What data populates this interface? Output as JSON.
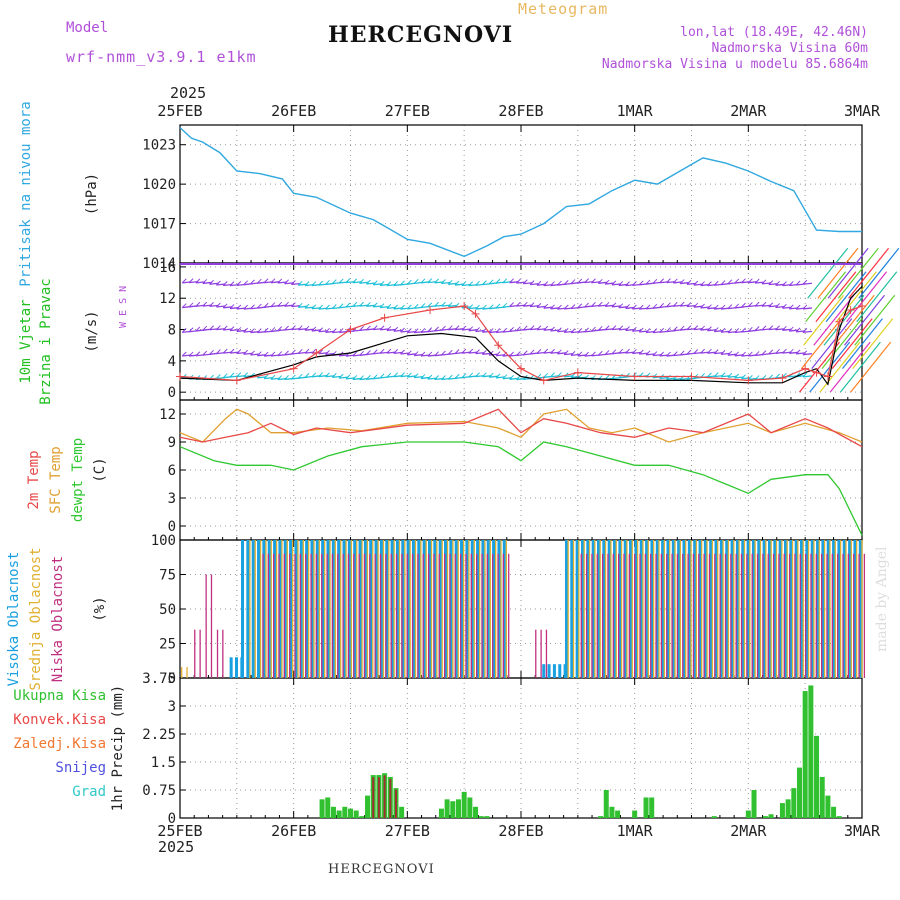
{
  "header": {
    "model_label": "Model",
    "model_name": "wrf-nmm_v3.9.1 e1km",
    "meteogram": "Meteogram",
    "station": "HERCEGNOVI",
    "lonlat": "lon,lat (18.49E, 42.46N)",
    "altitude": "Nadmorska Visina 60m",
    "model_altitude": "Nadmorska Visina u modelu 85.6864m",
    "year_top": "2025",
    "year_bottom": "2025",
    "footer_station": "HERCEGNOVI",
    "watermark": "made by Angel"
  },
  "colors": {
    "pressure": "#30a8e0",
    "temp2m": "#e84848",
    "sfc": "#e0a030",
    "dew": "#30c830",
    "high_cloud": "#18a0e0",
    "mid_cloud": "#e0b030",
    "low_cloud": "#c03080",
    "precip": "#30c030",
    "conv": "#e84848",
    "wind_speed": "#000000",
    "gust": "#e84848",
    "barb_violet": "#9040e0"
  },
  "chart_data": [
    {
      "type": "line",
      "id": "pressure",
      "ylabel": "Pritisak na nivou mora",
      "unit": "(hPa)",
      "ylim": [
        1014,
        1024.5
      ],
      "yticks": [
        "1014",
        "1017",
        "1020",
        "1023"
      ],
      "x_days": [
        "25FEB",
        "26FEB",
        "27FEB",
        "28FEB",
        "1MAR",
        "2MAR",
        "3MAR"
      ],
      "x": [
        0,
        0.1,
        0.2,
        0.35,
        0.5,
        0.7,
        0.9,
        1.0,
        1.2,
        1.5,
        1.7,
        2.0,
        2.2,
        2.5,
        2.7,
        2.85,
        3.0,
        3.2,
        3.4,
        3.6,
        3.8,
        4.0,
        4.2,
        4.4,
        4.6,
        4.8,
        5.0,
        5.2,
        5.4,
        5.6,
        5.8,
        6.0
      ],
      "y": [
        1024.3,
        1023.5,
        1023.2,
        1022.4,
        1021.0,
        1020.8,
        1020.4,
        1019.3,
        1019.0,
        1017.8,
        1017.3,
        1015.8,
        1015.5,
        1014.5,
        1015.3,
        1016.0,
        1016.2,
        1017.0,
        1018.3,
        1018.5,
        1019.5,
        1020.3,
        1020.0,
        1021.0,
        1022.0,
        1021.6,
        1021.0,
        1020.2,
        1019.5,
        1016.5,
        1016.4,
        1016.4
      ]
    },
    {
      "type": "line",
      "id": "wind",
      "ylabel": "10m Vjetar",
      "ylabel2": "Brzina i Pravac",
      "unit": "(m/s)",
      "ylim": [
        -1,
        16.5
      ],
      "yticks": [
        "0",
        "4",
        "8",
        "12",
        "16"
      ],
      "compass": "W  E   S  N",
      "series": [
        {
          "x": [
            0,
            0.5,
            1.0,
            1.2,
            1.5,
            2.0,
            2.3,
            2.6,
            2.8,
            3.0,
            3.2,
            3.5,
            4.0,
            4.5,
            5.0,
            5.3,
            5.5,
            5.6,
            5.7,
            5.8,
            5.9,
            6.0
          ],
          "y": [
            1.8,
            1.5,
            3.5,
            4.5,
            5.0,
            7.2,
            7.5,
            7.0,
            4.0,
            2.0,
            1.5,
            1.8,
            1.5,
            1.5,
            1.2,
            1.2,
            2.5,
            3.0,
            1.0,
            8.0,
            12.0,
            13.5
          ]
        },
        {
          "x": [
            0,
            0.5,
            1.0,
            1.2,
            1.5,
            1.8,
            2.2,
            2.5,
            2.6,
            2.8,
            3.0,
            3.2,
            3.5,
            4.0,
            4.5,
            5.0,
            5.3,
            5.5,
            5.6,
            5.7,
            5.8,
            5.9,
            6.0
          ],
          "y": [
            2.0,
            1.5,
            3.0,
            5.0,
            8.0,
            9.5,
            10.5,
            11.0,
            10.0,
            6.0,
            3.0,
            1.5,
            2.5,
            2.0,
            2.0,
            1.5,
            1.8,
            3.0,
            2.5,
            2.0,
            9.0,
            10.5,
            11.0
          ]
        }
      ]
    },
    {
      "type": "line",
      "id": "temperature",
      "ylabel": "2m Temp",
      "ylabel2": "SFC Temp",
      "ylabel3": "dewpt Temp",
      "unit": "(C)",
      "ylim": [
        -1.5,
        13.5
      ],
      "yticks": [
        "0",
        "3",
        "6",
        "9",
        "12"
      ],
      "series": [
        {
          "name": "2m Temp",
          "x": [
            0,
            0.2,
            0.4,
            0.6,
            0.8,
            1.0,
            1.2,
            1.5,
            2.0,
            2.5,
            2.8,
            3.0,
            3.2,
            3.4,
            3.7,
            4.0,
            4.3,
            4.6,
            5.0,
            5.2,
            5.5,
            5.7,
            6.0
          ],
          "y": [
            9.5,
            9.0,
            9.5,
            10.0,
            11.0,
            9.8,
            10.5,
            10.0,
            10.8,
            11.0,
            12.5,
            10.0,
            11.5,
            11.0,
            10.0,
            9.5,
            10.5,
            10.0,
            12.0,
            10.0,
            11.5,
            10.5,
            8.5
          ]
        },
        {
          "name": "SFC Temp",
          "x": [
            0,
            0.2,
            0.4,
            0.5,
            0.6,
            0.8,
            1.0,
            1.3,
            1.6,
            2.0,
            2.5,
            2.8,
            3.0,
            3.2,
            3.4,
            3.6,
            3.8,
            4.0,
            4.3,
            4.6,
            5.0,
            5.2,
            5.5,
            5.8,
            6.0
          ],
          "y": [
            10.0,
            9.0,
            11.5,
            12.5,
            12.0,
            10.0,
            10.0,
            10.5,
            10.2,
            11.0,
            11.2,
            10.5,
            9.5,
            12.0,
            12.5,
            10.5,
            10.0,
            10.5,
            9.0,
            10.0,
            11.0,
            10.0,
            11.0,
            10.0,
            9.0
          ]
        },
        {
          "name": "dewpt Temp",
          "x": [
            0,
            0.3,
            0.5,
            0.8,
            1.0,
            1.3,
            1.6,
            2.0,
            2.5,
            2.8,
            3.0,
            3.2,
            3.4,
            3.7,
            4.0,
            4.3,
            4.6,
            4.8,
            5.0,
            5.2,
            5.5,
            5.7,
            5.8,
            6.0
          ],
          "y": [
            8.5,
            7.0,
            6.5,
            6.5,
            6.0,
            7.5,
            8.5,
            9.0,
            9.0,
            8.5,
            7.0,
            9.0,
            8.5,
            7.5,
            6.5,
            6.5,
            5.5,
            4.5,
            3.5,
            5.0,
            5.5,
            5.5,
            4.0,
            -1.0
          ]
        }
      ]
    },
    {
      "type": "bar",
      "id": "clouds",
      "ylabel": "Visoka Oblacnost",
      "ylabel2": "Srednja Oblacnost",
      "ylabel3": "Niska Oblacnost",
      "unit": "(%)",
      "ylim": [
        0,
        100
      ],
      "yticks": [
        "0",
        "25",
        "50",
        "75",
        "100"
      ],
      "series": [
        {
          "name": "Visoka Oblacnost",
          "segments": [
            [
              0.45,
              0.55,
              15
            ],
            [
              0.55,
              2.9,
              100
            ],
            [
              3.2,
              3.4,
              10
            ],
            [
              3.4,
              6.0,
              100
            ]
          ]
        },
        {
          "name": "Srednja Oblacnost",
          "segments": [
            [
              0.0,
              0.05,
              8
            ],
            [
              0.6,
              2.9,
              100
            ],
            [
              3.4,
              6.0,
              100
            ]
          ]
        },
        {
          "name": "Niska Oblacnost",
          "segments": [
            [
              0.1,
              0.15,
              35
            ],
            [
              0.2,
              0.25,
              75
            ],
            [
              0.3,
              0.35,
              35
            ],
            [
              0.7,
              2.9,
              90
            ],
            [
              3.1,
              3.2,
              35
            ],
            [
              3.5,
              6.0,
              90
            ]
          ]
        }
      ]
    },
    {
      "type": "bar",
      "id": "precip",
      "ylabel": "1hr Precip",
      "unit": "(mm)",
      "ylim": [
        0,
        3.75
      ],
      "yticks": [
        "0",
        "0.75",
        "1.5",
        "2.25",
        "3",
        "3.75"
      ],
      "legend": [
        "Ukupna Kisa",
        "Konvek.Kisa",
        "Zaledj.Kisa",
        "Snijeg",
        "Grad"
      ],
      "x": [
        1.25,
        1.3,
        1.35,
        1.4,
        1.45,
        1.5,
        1.55,
        1.6,
        1.65,
        1.7,
        1.75,
        1.8,
        1.85,
        1.9,
        1.95,
        2.3,
        2.35,
        2.4,
        2.45,
        2.5,
        2.55,
        2.6,
        2.65,
        2.7,
        3.7,
        3.75,
        3.8,
        3.85,
        4.0,
        4.1,
        4.15,
        4.7,
        5.0,
        5.05,
        5.15,
        5.2,
        5.3,
        5.35,
        5.4,
        5.45,
        5.5,
        5.55,
        5.6,
        5.65,
        5.7,
        5.75,
        5.8
      ],
      "values": [
        0.5,
        0.55,
        0.3,
        0.2,
        0.3,
        0.25,
        0.2,
        0.05,
        0.6,
        1.15,
        1.15,
        1.2,
        1.1,
        0.8,
        0.3,
        0.25,
        0.5,
        0.45,
        0.5,
        0.7,
        0.55,
        0.3,
        0.05,
        0.05,
        0.05,
        0.75,
        0.3,
        0.2,
        0.2,
        0.55,
        0.55,
        0.05,
        0.2,
        0.75,
        0.05,
        0.1,
        0.4,
        0.5,
        0.8,
        1.35,
        3.4,
        3.55,
        2.2,
        1.1,
        0.6,
        0.3,
        0.05
      ]
    }
  ]
}
